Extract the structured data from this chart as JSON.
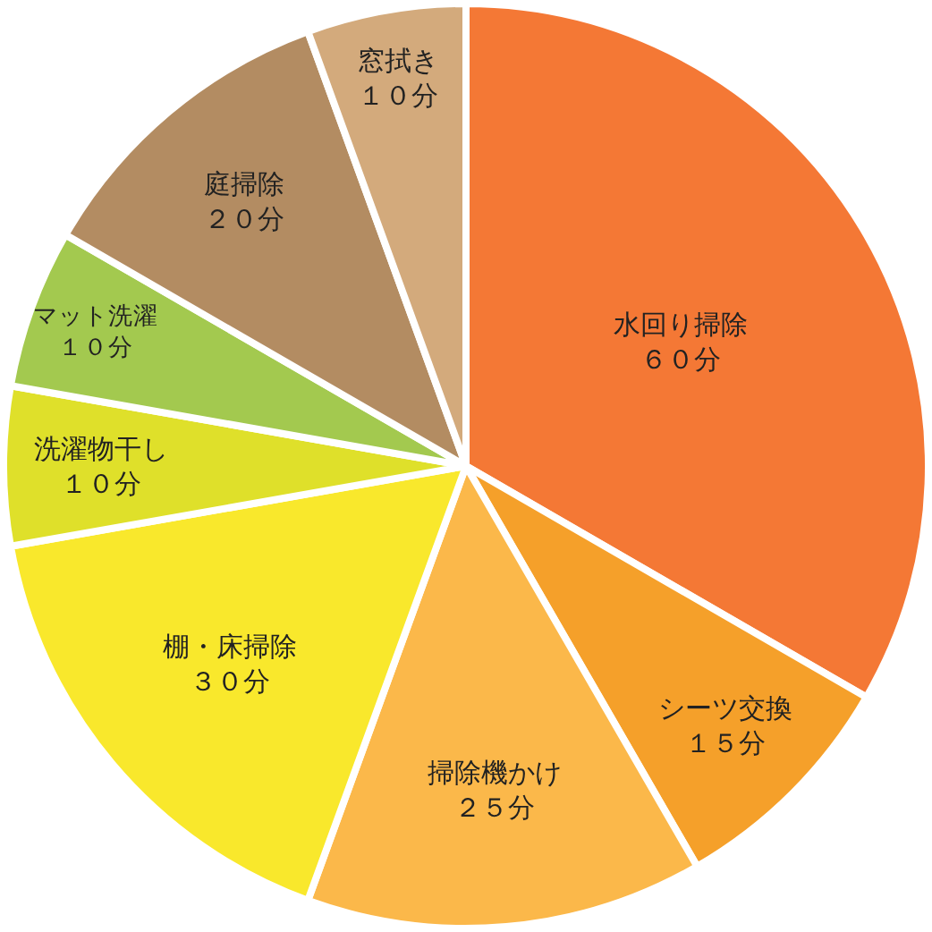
{
  "chart_data": {
    "type": "pie",
    "categories": [
      "水回り掃除",
      "シーツ交換",
      "掃除機かけ",
      "棚・床掃除",
      "洗濯物干し",
      "マット洗濯",
      "庭掃除",
      "窓拭き"
    ],
    "values": [
      60,
      15,
      25,
      30,
      10,
      10,
      20,
      10
    ],
    "value_labels": [
      "６０分",
      "１５分",
      "２５分",
      "３０分",
      "１０分",
      "１０分",
      "２０分",
      "１０分"
    ],
    "colors": [
      "#f47835",
      "#f5a02a",
      "#fbb84a",
      "#f9e82c",
      "#dfe02a",
      "#a3c94f",
      "#b38c62",
      "#d3aa7c"
    ],
    "legend": false
  }
}
